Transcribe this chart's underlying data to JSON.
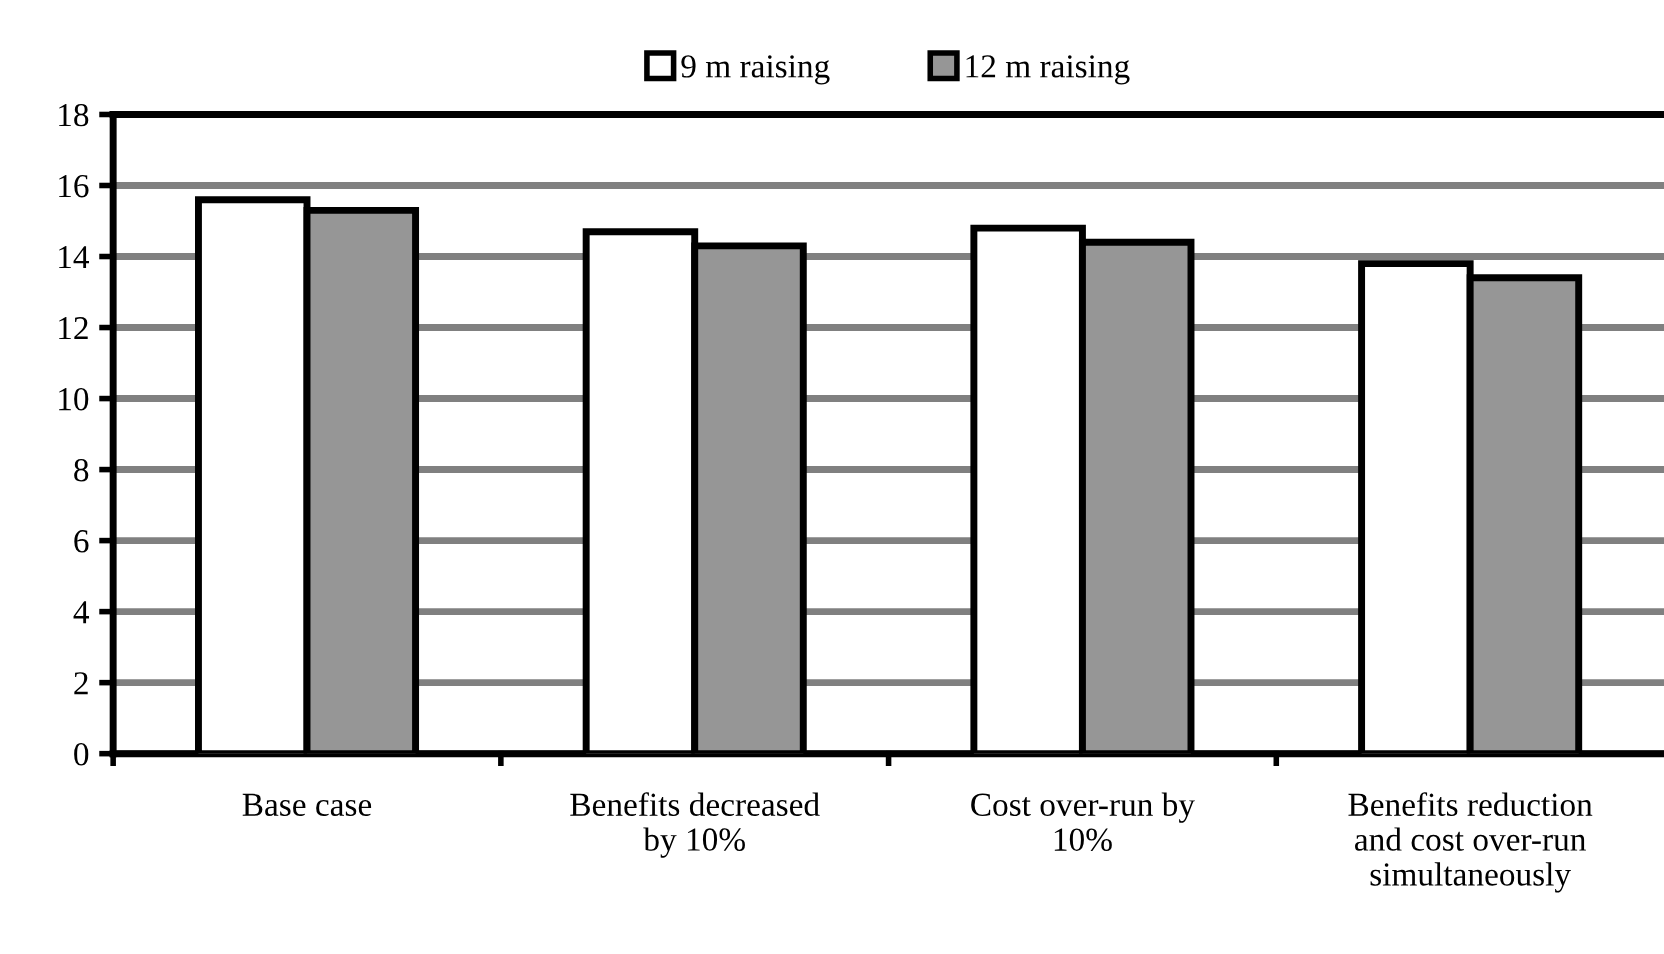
{
  "chart_data": {
    "type": "bar",
    "categories": [
      "Base case",
      "Benefits decreased\nby 10%",
      "Cost over-run by\n10%",
      "Benefits reduction\nand cost over-run\nsimultaneously"
    ],
    "series": [
      {
        "name": "9 m raising",
        "color": "#ffffff",
        "values": [
          15.6,
          14.7,
          14.8,
          13.8
        ]
      },
      {
        "name": "12 m raising",
        "color": "#969696",
        "values": [
          15.3,
          14.3,
          14.4,
          13.4
        ]
      }
    ],
    "ylim": [
      0,
      18
    ],
    "yticks": [
      0,
      2,
      4,
      6,
      8,
      10,
      12,
      14,
      16,
      18
    ],
    "grid": "y",
    "legend": "top"
  }
}
